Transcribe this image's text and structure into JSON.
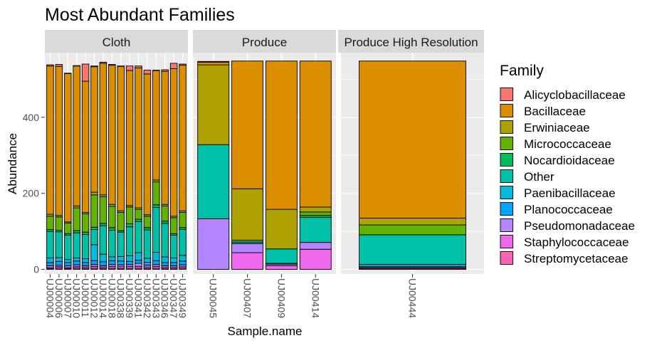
{
  "chart_data": {
    "type": "bar",
    "stacked": true,
    "title": "Most Abundant Families",
    "xlabel": "Sample.name",
    "ylabel": "Abundance",
    "ylim": [
      -12,
      570
    ],
    "y_ticks": [
      0,
      200,
      400
    ],
    "y_tick_labels": [
      "0",
      "200",
      "400"
    ],
    "grid": true,
    "legend": {
      "title": "Family",
      "position": "right",
      "entries": [
        {
          "name": "Alicyclobacillaceae",
          "color": "#F8766D"
        },
        {
          "name": "Bacillaceae",
          "color": "#DB8E00"
        },
        {
          "name": "Erwiniaceae",
          "color": "#AEA200"
        },
        {
          "name": "Micrococcaceae",
          "color": "#64B200"
        },
        {
          "name": "Nocardioidaceae",
          "color": "#00BD5C"
        },
        {
          "name": "Other",
          "color": "#00C1A7"
        },
        {
          "name": "Paenibacillaceae",
          "color": "#00BADE"
        },
        {
          "name": "Planococcaceae",
          "color": "#00A6FF"
        },
        {
          "name": "Pseudomonadaceae",
          "color": "#B385FF"
        },
        {
          "name": "Staphylococcaceae",
          "color": "#EF67EB"
        },
        {
          "name": "Streptomycetaceae",
          "color": "#FF63B6"
        }
      ]
    },
    "panels": [
      {
        "name": "Cloth",
        "samples": [
          {
            "label": "UJ00004",
            "segments": {
              "Streptomycetaceae": 2,
              "Staphylococcaceae": 3,
              "Pseudomonadaceae": 5,
              "Planococcaceae": 8,
              "Paenibacillaceae": 12,
              "Other": 70,
              "Nocardioidaceae": 5,
              "Micrococcaceae": 35,
              "Erwiniaceae": 5,
              "Bacillaceae": 390,
              "Alicyclobacillaceae": 3
            }
          },
          {
            "label": "UJ00006",
            "segments": {
              "Streptomycetaceae": 3,
              "Staphylococcaceae": 4,
              "Pseudomonadaceae": 4,
              "Planococcaceae": 10,
              "Paenibacillaceae": 10,
              "Other": 68,
              "Nocardioidaceae": 4,
              "Micrococcaceae": 35,
              "Erwiniaceae": 4,
              "Bacillaceae": 392,
              "Alicyclobacillaceae": 5
            }
          },
          {
            "label": "UJ00007",
            "segments": {
              "Streptomycetaceae": 2,
              "Staphylococcaceae": 3,
              "Pseudomonadaceae": 5,
              "Planococcaceae": 8,
              "Paenibacillaceae": 8,
              "Other": 64,
              "Nocardioidaceae": 4,
              "Micrococcaceae": 28,
              "Erwiniaceae": 3,
              "Bacillaceae": 390,
              "Alicyclobacillaceae": 1
            }
          },
          {
            "label": "UJ00010",
            "segments": {
              "Streptomycetaceae": 3,
              "Staphylococcaceae": 4,
              "Pseudomonadaceae": 5,
              "Planococcaceae": 10,
              "Paenibacillaceae": 8,
              "Other": 66,
              "Nocardioidaceae": 6,
              "Micrococcaceae": 60,
              "Erwiniaceae": 5,
              "Bacillaceae": 368,
              "Alicyclobacillaceae": 1
            }
          },
          {
            "label": "UJ00011",
            "segments": {
              "Streptomycetaceae": 2,
              "Staphylococcaceae": 4,
              "Pseudomonadaceae": 4,
              "Planococcaceae": 8,
              "Paenibacillaceae": 10,
              "Other": 64,
              "Nocardioidaceae": 6,
              "Micrococcaceae": 48,
              "Erwiniaceae": 4,
              "Bacillaceae": 345,
              "Alicyclobacillaceae": 45
            }
          },
          {
            "label": "UJ00012",
            "segments": {
              "Streptomycetaceae": 3,
              "Staphylococcaceae": 5,
              "Pseudomonadaceae": 5,
              "Planococcaceae": 10,
              "Paenibacillaceae": 42,
              "Other": 40,
              "Nocardioidaceae": 6,
              "Micrococcaceae": 85,
              "Erwiniaceae": 7,
              "Bacillaceae": 330,
              "Alicyclobacillaceae": 2
            }
          },
          {
            "label": "UJ00014",
            "segments": {
              "Streptomycetaceae": 2,
              "Staphylococcaceae": 4,
              "Pseudomonadaceae": 4,
              "Planococcaceae": 10,
              "Paenibacillaceae": 20,
              "Other": 75,
              "Nocardioidaceae": 6,
              "Micrococcaceae": 70,
              "Erwiniaceae": 5,
              "Bacillaceae": 346,
              "Alicyclobacillaceae": 3
            }
          },
          {
            "label": "UJ00018",
            "segments": {
              "Streptomycetaceae": 3,
              "Staphylococcaceae": 5,
              "Pseudomonadaceae": 5,
              "Planococcaceae": 10,
              "Paenibacillaceae": 10,
              "Other": 70,
              "Nocardioidaceae": 7,
              "Micrococcaceae": 56,
              "Erwiniaceae": 5,
              "Bacillaceae": 366,
              "Alicyclobacillaceae": 2
            }
          },
          {
            "label": "UJ00338",
            "segments": {
              "Streptomycetaceae": 2,
              "Staphylococcaceae": 5,
              "Pseudomonadaceae": 5,
              "Planococcaceae": 10,
              "Paenibacillaceae": 12,
              "Other": 64,
              "Nocardioidaceae": 4,
              "Micrococcaceae": 48,
              "Erwiniaceae": 4,
              "Bacillaceae": 380,
              "Alicyclobacillaceae": 1
            }
          },
          {
            "label": "UJ00339",
            "segments": {
              "Streptomycetaceae": 3,
              "Staphylococcaceae": 5,
              "Pseudomonadaceae": 5,
              "Planococcaceae": 8,
              "Paenibacillaceae": 15,
              "Other": 76,
              "Nocardioidaceae": 8,
              "Micrococcaceae": 44,
              "Erwiniaceae": 4,
              "Bacillaceae": 355,
              "Alicyclobacillaceae": 12
            }
          },
          {
            "label": "UJ00341",
            "segments": {
              "Streptomycetaceae": 3,
              "Staphylococcaceae": 5,
              "Pseudomonadaceae": 8,
              "Planococcaceae": 8,
              "Paenibacillaceae": 20,
              "Other": 82,
              "Nocardioidaceae": 6,
              "Micrococcaceae": 26,
              "Erwiniaceae": 4,
              "Bacillaceae": 368,
              "Alicyclobacillaceae": 5
            }
          },
          {
            "label": "UJ00342",
            "segments": {
              "Streptomycetaceae": 2,
              "Staphylococcaceae": 4,
              "Pseudomonadaceae": 5,
              "Planococcaceae": 8,
              "Paenibacillaceae": 10,
              "Other": 75,
              "Nocardioidaceae": 6,
              "Micrococcaceae": 30,
              "Erwiniaceae": 4,
              "Bacillaceae": 370,
              "Alicyclobacillaceae": 10
            }
          },
          {
            "label": "UJ00343",
            "segments": {
              "Streptomycetaceae": 3,
              "Staphylococcaceae": 5,
              "Pseudomonadaceae": 5,
              "Planococcaceae": 10,
              "Paenibacillaceae": 22,
              "Other": 118,
              "Nocardioidaceae": 7,
              "Micrococcaceae": 60,
              "Erwiniaceae": 5,
              "Bacillaceae": 288,
              "Alicyclobacillaceae": 1
            }
          },
          {
            "label": "UJ00346",
            "segments": {
              "Streptomycetaceae": 2,
              "Staphylococcaceae": 4,
              "Pseudomonadaceae": 4,
              "Planococcaceae": 8,
              "Paenibacillaceae": 15,
              "Other": 88,
              "Nocardioidaceae": 6,
              "Micrococcaceae": 40,
              "Erwiniaceae": 4,
              "Bacillaceae": 350,
              "Alicyclobacillaceae": 4
            }
          },
          {
            "label": "UJ00347",
            "segments": {
              "Streptomycetaceae": 2,
              "Staphylococcaceae": 4,
              "Pseudomonadaceae": 4,
              "Planococcaceae": 8,
              "Paenibacillaceae": 12,
              "Other": 60,
              "Nocardioidaceae": 4,
              "Micrococcaceae": 42,
              "Erwiniaceae": 4,
              "Bacillaceae": 388,
              "Alicyclobacillaceae": 14
            }
          },
          {
            "label": "UJ00349",
            "segments": {
              "Streptomycetaceae": 3,
              "Staphylococcaceae": 4,
              "Pseudomonadaceae": 5,
              "Planococcaceae": 10,
              "Paenibacillaceae": 15,
              "Other": 68,
              "Nocardioidaceae": 5,
              "Micrococcaceae": 40,
              "Erwiniaceae": 4,
              "Bacillaceae": 383,
              "Alicyclobacillaceae": 3
            }
          }
        ]
      },
      {
        "name": "Produce",
        "samples": [
          {
            "label": "UJ00045",
            "segments": {
              "Pseudomonadaceae": 133,
              "Other": 195,
              "Erwiniaceae": 210,
              "Bacillaceae": 7,
              "Alicyclobacillaceae": 2
            }
          },
          {
            "label": "UJ00407",
            "segments": {
              "Staphylococcaceae": 44,
              "Pseudomonadaceae": 24,
              "Other": 4,
              "Micrococcaceae": 5,
              "Erwiniaceae": 135,
              "Bacillaceae": 336
            }
          },
          {
            "label": "UJ00409",
            "segments": {
              "Staphylococcaceae": 10,
              "Pseudomonadaceae": 4,
              "Paenibacillaceae": 2,
              "Other": 38,
              "Erwiniaceae": 104,
              "Bacillaceae": 390
            }
          },
          {
            "label": "UJ00414",
            "segments": {
              "Staphylococcaceae": 53,
              "Pseudomonadaceae": 18,
              "Other": 66,
              "Nocardioidaceae": 5,
              "Micrococcaceae": 9,
              "Erwiniaceae": 13,
              "Bacillaceae": 384
            }
          }
        ]
      },
      {
        "name": "Produce High Resolution",
        "samples": [
          {
            "label": "UJ00444",
            "segments": {
              "Streptomycetaceae": 2,
              "Staphylococcaceae": 3,
              "Planococcaceae": 2,
              "Paenibacillaceae": 6,
              "Other": 78,
              "Micrococcaceae": 26,
              "Erwiniaceae": 18,
              "Bacillaceae": 413
            }
          }
        ]
      }
    ]
  }
}
